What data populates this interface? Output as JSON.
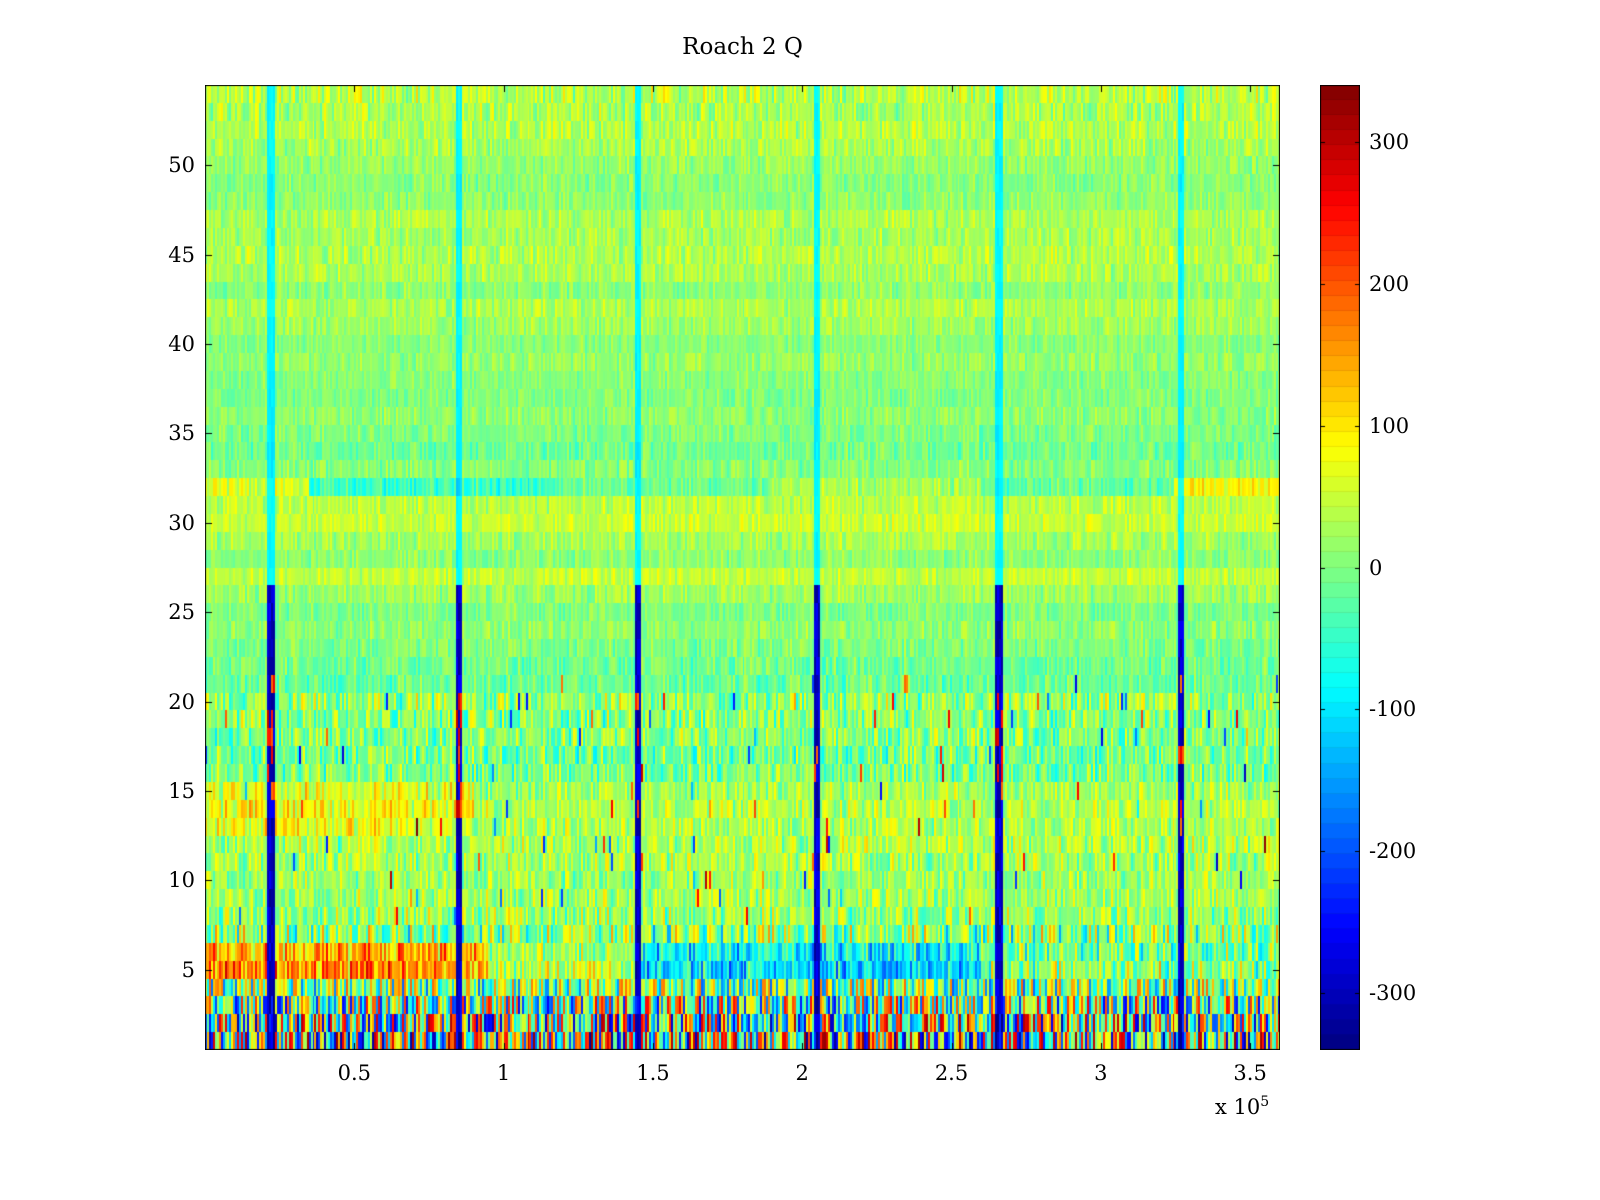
{
  "offset": {
    "base": "x 10",
    "exp": "5"
  },
  "chart_data": {
    "type": "heatmap",
    "title": "Roach 2 Q",
    "colormap": "jet",
    "clim": [
      -340,
      340
    ],
    "x_axis": {
      "unit": "1e5",
      "min": 0,
      "max": 3.6,
      "tick_values": [
        0.5,
        1,
        1.5,
        2,
        2.5,
        3,
        3.5
      ],
      "tick_labels": [
        "0.5",
        "1",
        "1.5",
        "2",
        "2.5",
        "3",
        "3.5"
      ],
      "offset_label": "x 10^5"
    },
    "y_axis": {
      "min": 0.5,
      "max": 54.5,
      "tick_values": [
        5,
        10,
        15,
        20,
        25,
        30,
        35,
        40,
        45,
        50
      ],
      "tick_labels": [
        "5",
        "10",
        "15",
        "20",
        "25",
        "30",
        "35",
        "40",
        "45",
        "50"
      ]
    },
    "colorbar": {
      "min": -340,
      "max": 340,
      "segments": 64,
      "tick_values": [
        300,
        200,
        100,
        0,
        -100,
        -200,
        -300
      ],
      "tick_labels": [
        "300",
        "200",
        "100",
        "0",
        "-100",
        "-200",
        "-300"
      ]
    },
    "n_rows": 54,
    "noise_seed": 1337,
    "rows": [
      {
        "base": 0,
        "amp": 330
      },
      {
        "base": 0,
        "amp": 310
      },
      {
        "base": 0,
        "amp": 260
      },
      {
        "base": 0,
        "amp": 190
      },
      {
        "seg": [
          [
            0,
            0.95,
            170,
            130
          ],
          [
            0.95,
            1.45,
            40,
            110
          ],
          [
            1.45,
            2.6,
            -110,
            120
          ],
          [
            2.6,
            3.6,
            10,
            130
          ]
        ]
      },
      {
        "seg": [
          [
            0,
            0.95,
            140,
            120
          ],
          [
            0.95,
            1.45,
            20,
            100
          ],
          [
            1.45,
            2.6,
            -90,
            110
          ],
          [
            2.6,
            3.6,
            -10,
            120
          ]
        ]
      },
      {
        "base": 10,
        "amp": 150
      },
      {
        "base": 20,
        "amp": 95
      },
      {
        "base": 25,
        "amp": 75
      },
      {
        "base": 20,
        "amp": 75
      },
      {
        "base": 25,
        "amp": 80
      },
      {
        "base": 35,
        "amp": 80
      },
      {
        "seg": [
          [
            0,
            0.9,
            75,
            80
          ],
          [
            0.9,
            3.6,
            30,
            70
          ]
        ]
      },
      {
        "seg": [
          [
            0,
            0.9,
            85,
            80
          ],
          [
            0.9,
            3.6,
            35,
            70
          ]
        ]
      },
      {
        "seg": [
          [
            0,
            0.9,
            60,
            80
          ],
          [
            0.9,
            3.6,
            25,
            70
          ]
        ]
      },
      {
        "base": 0,
        "amp": 90
      },
      {
        "base": -10,
        "amp": 90
      },
      {
        "base": 0,
        "amp": 90
      },
      {
        "base": 5,
        "amp": 95
      },
      {
        "base": 10,
        "amp": 105
      },
      {
        "base": -15,
        "amp": 55
      },
      {
        "base": -10,
        "amp": 50
      },
      {
        "base": 0,
        "amp": 45
      },
      {
        "base": 10,
        "amp": 45
      },
      {
        "base": 0,
        "amp": 40
      },
      {
        "base": 20,
        "amp": 45
      },
      {
        "base": 45,
        "amp": 40
      },
      {
        "base": 10,
        "amp": 40
      },
      {
        "base": 25,
        "amp": 45
      },
      {
        "base": 50,
        "amp": 40
      },
      {
        "base": 40,
        "amp": 45
      },
      {
        "seg": [
          [
            0,
            0.35,
            60,
            50
          ],
          [
            0.35,
            1.2,
            -45,
            55
          ],
          [
            1.2,
            1.9,
            -10,
            45
          ],
          [
            1.9,
            2.6,
            25,
            50
          ],
          [
            2.6,
            3.25,
            -20,
            50
          ],
          [
            3.25,
            3.6,
            90,
            60
          ]
        ]
      },
      {
        "base": 5,
        "amp": 45
      },
      {
        "base": -10,
        "amp": 45
      },
      {
        "base": 0,
        "amp": 40
      },
      {
        "base": 10,
        "amp": 40
      },
      {
        "base": 0,
        "amp": 35
      },
      {
        "base": 5,
        "amp": 35
      },
      {
        "base": 15,
        "amp": 40
      },
      {
        "base": 5,
        "amp": 35
      },
      {
        "base": 20,
        "amp": 40
      },
      {
        "base": 30,
        "amp": 45
      },
      {
        "base": 10,
        "amp": 40
      },
      {
        "base": 30,
        "amp": 45
      },
      {
        "base": 35,
        "amp": 50
      },
      {
        "base": 25,
        "amp": 45
      },
      {
        "base": 30,
        "amp": 45
      },
      {
        "base": 10,
        "amp": 40
      },
      {
        "base": 5,
        "amp": 40
      },
      {
        "base": 15,
        "amp": 40
      },
      {
        "base": 25,
        "amp": 50
      },
      {
        "base": 35,
        "amp": 55
      },
      {
        "base": 30,
        "amp": 60
      },
      {
        "base": 40,
        "amp": 70
      }
    ],
    "stripes": {
      "x": [
        0.22,
        0.85,
        1.45,
        2.05,
        2.66,
        3.27
      ],
      "half_width": 0.0105,
      "low_value": -290,
      "high_value": -95,
      "boundary_row": 26
    }
  }
}
